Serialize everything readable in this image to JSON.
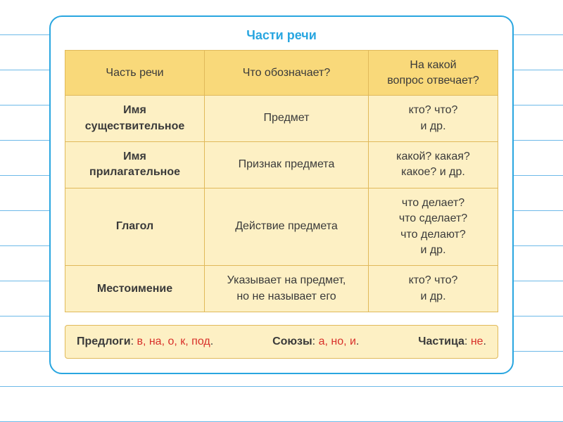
{
  "title": "Части речи",
  "columns": [
    "Часть речи",
    "Что обозначает?",
    "На какой\nвопрос отвечает?"
  ],
  "rows": [
    {
      "name": "Имя\nсуществительное",
      "means": "Предмет",
      "q": "кто? что?\nи др."
    },
    {
      "name": "Имя\nприлагательное",
      "means": "Признак предмета",
      "q": "какой? какая?\nкакое? и др."
    },
    {
      "name": "Глагол",
      "means": "Действие предмета",
      "q": "что делает?\nчто сделает?\nчто делают?\nи др."
    },
    {
      "name": "Местоимение",
      "means": "Указывает на предмет,\nно не называет его",
      "q": "кто? что?\nи др."
    }
  ],
  "footer": {
    "prepositions": {
      "label": "Предлоги",
      "items_text": "в, на, о, к, под"
    },
    "conjunctions": {
      "label": "Союзы",
      "items_text": "а, но, и"
    },
    "particle": {
      "label": "Частица",
      "items_text": "не"
    }
  },
  "style": {
    "accent": "#29a6e0",
    "table_border": "#e0b95a",
    "header_bg": "#f9d97a",
    "cell_bg": "#fdf0c4",
    "text": "#3a3a3a",
    "highlight": "#d8302a",
    "line_color": "#6db9e8",
    "font_family": "Arial",
    "title_fontsize": 18,
    "body_fontsize": 16
  }
}
